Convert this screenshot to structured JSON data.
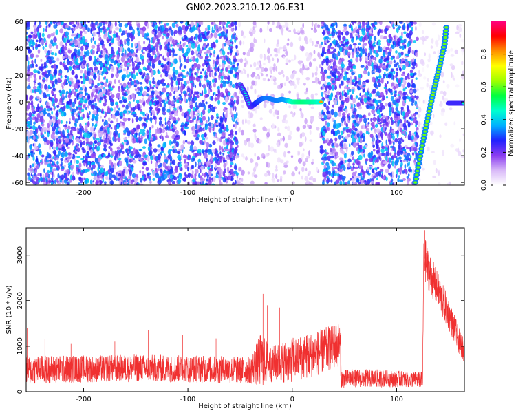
{
  "figure": {
    "title": "GN02.2023.210.12.06.E31"
  },
  "chart_data": [
    {
      "type": "heatmap",
      "title": "",
      "xlabel": "Height of straight line (km)",
      "ylabel": "Frequency (Hz)",
      "xlim": [
        -255,
        165
      ],
      "ylim": [
        -62,
        60
      ],
      "xticks": [
        -200,
        -100,
        0,
        100
      ],
      "yticks": [
        -60,
        -40,
        -20,
        0,
        20,
        40,
        60
      ],
      "grid": false,
      "colorbar": {
        "label": "Normalized spectral amplitude",
        "range": [
          0.0,
          1.0
        ],
        "ticks": [
          0.0,
          0.2,
          0.4,
          0.6,
          0.8
        ],
        "colormap": [
          "#ffffff",
          "#d8b8f8",
          "#8a3cf0",
          "#2020ff",
          "#00b0ff",
          "#00ffd0",
          "#00ff40",
          "#a0ff00",
          "#ffff00",
          "#ff9000",
          "#ff0000",
          "#ff0080"
        ]
      },
      "regions": [
        {
          "name": "broadband noise",
          "x": [
            -255,
            -52
          ],
          "amplitude": 0.25
        },
        {
          "name": "sparse noise",
          "x": [
            -52,
            28
          ],
          "amplitude": 0.08
        },
        {
          "name": "broadband noise",
          "x": [
            28,
            120
          ],
          "amplitude": 0.25
        },
        {
          "name": "sparse noise",
          "x": [
            120,
            165
          ],
          "amplitude": 0.04
        }
      ],
      "ridges": [
        {
          "name": "dispersive arrival",
          "x": [
            -50,
            -45,
            -40,
            -35,
            -30,
            -25,
            -20,
            -15,
            -10,
            -5,
            0,
            5,
            10,
            15,
            20,
            25,
            28
          ],
          "y": [
            13,
            6,
            -4,
            -1,
            2,
            3,
            2,
            1,
            2,
            1,
            0,
            0,
            0,
            0,
            0,
            0,
            0
          ],
          "amplitude": [
            0.4,
            0.45,
            0.4,
            0.5,
            0.55,
            0.6,
            0.6,
            0.6,
            0.62,
            0.65,
            0.85,
            0.9,
            0.92,
            0.9,
            0.88,
            0.85,
            0.8
          ]
        },
        {
          "name": "sweep",
          "x": [
            118,
            122,
            126,
            130,
            134,
            138,
            142,
            146,
            148
          ],
          "y": [
            -60,
            -43,
            -27,
            -12,
            3,
            16,
            29,
            43,
            58
          ],
          "amplitude": [
            0.6,
            0.6,
            0.6,
            0.62,
            0.62,
            0.62,
            0.62,
            0.6,
            0.6
          ]
        },
        {
          "name": "tone",
          "x": [
            150,
            154,
            158,
            162,
            165
          ],
          "y": [
            -1,
            -1,
            -1,
            -1,
            -1
          ],
          "amplitude": [
            0.45,
            0.45,
            0.45,
            0.45,
            0.45
          ]
        }
      ]
    },
    {
      "type": "line",
      "title": "",
      "xlabel": "Height of straight line (km)",
      "ylabel": "SNR (10 * v/v)",
      "xlim": [
        -255,
        165
      ],
      "ylim": [
        0,
        3600
      ],
      "xticks": [
        -200,
        -100,
        0,
        100
      ],
      "yticks": [
        0,
        1000,
        2000,
        3000
      ],
      "grid": false,
      "series": [
        {
          "name": "",
          "color": "#f03030",
          "x": [
            -255,
            -200,
            -150,
            -100,
            -60,
            -40,
            -30,
            -20,
            -10,
            0,
            20,
            30,
            40,
            46,
            47,
            60,
            80,
            100,
            115,
            125,
            126,
            130,
            140,
            150,
            160,
            165
          ],
          "mean": [
            480,
            500,
            520,
            500,
            480,
            470,
            700,
            600,
            650,
            700,
            820,
            900,
            1000,
            1050,
            280,
            300,
            290,
            280,
            270,
            260,
            3000,
            2700,
            2200,
            1700,
            1100,
            900
          ],
          "spread": [
            320,
            300,
            300,
            300,
            300,
            300,
            600,
            400,
            450,
            500,
            500,
            500,
            500,
            500,
            200,
            200,
            200,
            180,
            180,
            180,
            500,
            450,
            400,
            350,
            300,
            250
          ],
          "spikes": [
            {
              "x": -254,
              "y": 1400
            },
            {
              "x": -237,
              "y": 1150
            },
            {
              "x": -212,
              "y": 1050
            },
            {
              "x": -170,
              "y": 1100
            },
            {
              "x": -138,
              "y": 1350
            },
            {
              "x": -105,
              "y": 1250
            },
            {
              "x": -73,
              "y": 1170
            },
            {
              "x": -28,
              "y": 2150
            },
            {
              "x": -24,
              "y": 1900
            },
            {
              "x": -12,
              "y": 1850
            },
            {
              "x": 40,
              "y": 2050
            },
            {
              "x": 127,
              "y": 3550
            }
          ]
        }
      ]
    }
  ]
}
